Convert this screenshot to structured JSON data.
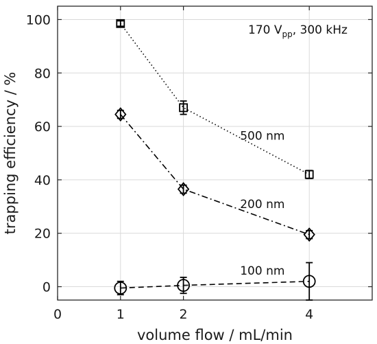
{
  "chart_data": {
    "type": "line",
    "xlabel": "volume flow / mL/min",
    "ylabel": "trapping efficiency / %",
    "xlim": [
      0,
      5
    ],
    "ylim": [
      -5,
      105
    ],
    "xticks": [
      "0",
      "1",
      "2",
      "4"
    ],
    "xtick_values": [
      0,
      1,
      2,
      4
    ],
    "yticks": [
      "0",
      "20",
      "40",
      "60",
      "80",
      "100"
    ],
    "ytick_values": [
      0,
      20,
      40,
      60,
      80,
      100
    ],
    "grid": true,
    "condition": {
      "main": "170 V",
      "subscript": "pp",
      "rest": ", 300 kHz"
    },
    "series": [
      {
        "name": "500 nm",
        "marker": "square",
        "linestyle": "dotted",
        "x": [
          1,
          2,
          4
        ],
        "y": [
          98.5,
          67.0,
          42.0
        ],
        "err": [
          1.0,
          2.5,
          1.5
        ]
      },
      {
        "name": "200 nm",
        "marker": "diamond",
        "linestyle": "dashdot",
        "x": [
          1,
          2,
          4
        ],
        "y": [
          64.5,
          36.5,
          19.5
        ],
        "err": [
          1.5,
          1.5,
          1.5
        ]
      },
      {
        "name": "100 nm",
        "marker": "circle",
        "linestyle": "dashed",
        "x": [
          1,
          2,
          4
        ],
        "y": [
          -0.5,
          0.5,
          2.0
        ],
        "err": [
          2.5,
          3.0,
          7.0
        ]
      }
    ]
  }
}
